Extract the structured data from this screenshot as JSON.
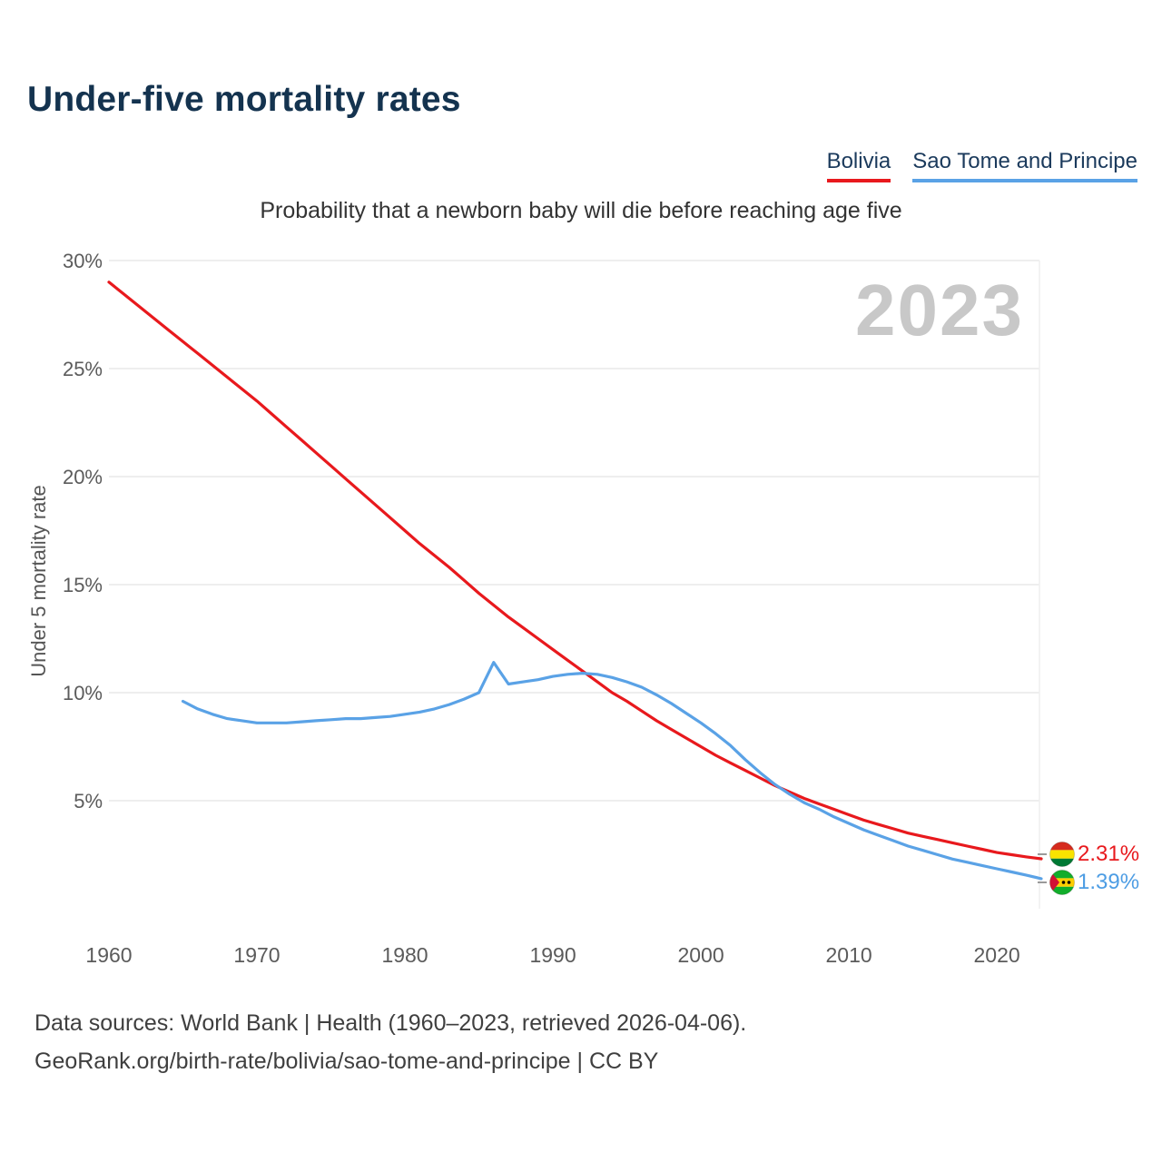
{
  "page": {
    "title": "Under-five mortality rates",
    "subtitle": "Probability that a newborn baby will die before reaching age five",
    "watermark": "2023",
    "footer_line1": "Data sources: World Bank | Health (1960–2023, retrieved 2026-04-06).",
    "footer_line2": "GeoRank.org/birth-rate/bolivia/sao-tome-and-principe | CC BY"
  },
  "legend": [
    {
      "label": "Bolivia",
      "color": "#e8191d"
    },
    {
      "label": "Sao Tome and Principe",
      "color": "#5aa2e6"
    }
  ],
  "chart_data": {
    "type": "line",
    "title": "Under-five mortality rates",
    "subtitle": "Probability that a newborn baby will die before reaching age five",
    "xlabel": "",
    "ylabel": "Under 5 mortality rate",
    "xlim": [
      1958,
      2026
    ],
    "ylim": [
      0,
      30
    ],
    "yticks": [
      5,
      10,
      15,
      20,
      25,
      30
    ],
    "ytick_suffix": "%",
    "xticks": [
      1960,
      1970,
      1980,
      1990,
      2000,
      2010,
      2020
    ],
    "grid": "horizontal",
    "legend_position": "top-right",
    "series": [
      {
        "name": "Bolivia",
        "color": "#e8191d",
        "end_label": "2.31%",
        "x": [
          1960,
          1961,
          1962,
          1963,
          1964,
          1965,
          1966,
          1967,
          1968,
          1969,
          1970,
          1971,
          1972,
          1973,
          1974,
          1975,
          1976,
          1977,
          1978,
          1979,
          1980,
          1981,
          1982,
          1983,
          1984,
          1985,
          1986,
          1987,
          1988,
          1989,
          1990,
          1991,
          1992,
          1993,
          1994,
          1995,
          1996,
          1997,
          1998,
          1999,
          2000,
          2001,
          2002,
          2003,
          2004,
          2005,
          2006,
          2007,
          2008,
          2009,
          2010,
          2011,
          2012,
          2013,
          2014,
          2015,
          2016,
          2017,
          2018,
          2019,
          2020,
          2021,
          2022,
          2023
        ],
        "values": [
          29.0,
          28.45,
          27.9,
          27.35,
          26.8,
          26.25,
          25.7,
          25.15,
          24.6,
          24.05,
          23.5,
          22.9,
          22.3,
          21.7,
          21.1,
          20.5,
          19.9,
          19.3,
          18.7,
          18.1,
          17.5,
          16.9,
          16.35,
          15.8,
          15.2,
          14.6,
          14.05,
          13.5,
          13.0,
          12.5,
          12.0,
          11.5,
          11.0,
          10.5,
          10.0,
          9.6,
          9.15,
          8.7,
          8.3,
          7.9,
          7.5,
          7.1,
          6.75,
          6.4,
          6.05,
          5.7,
          5.4,
          5.1,
          4.85,
          4.6,
          4.35,
          4.1,
          3.9,
          3.7,
          3.5,
          3.35,
          3.2,
          3.05,
          2.9,
          2.75,
          2.6,
          2.5,
          2.4,
          2.31
        ]
      },
      {
        "name": "Sao Tome and Principe",
        "color": "#5aa2e6",
        "end_label": "1.39%",
        "x": [
          1965,
          1966,
          1967,
          1968,
          1969,
          1970,
          1971,
          1972,
          1973,
          1974,
          1975,
          1976,
          1977,
          1978,
          1979,
          1980,
          1981,
          1982,
          1983,
          1984,
          1985,
          1986,
          1987,
          1988,
          1989,
          1990,
          1991,
          1992,
          1993,
          1994,
          1995,
          1996,
          1997,
          1998,
          1999,
          2000,
          2001,
          2002,
          2003,
          2004,
          2005,
          2006,
          2007,
          2008,
          2009,
          2010,
          2011,
          2012,
          2013,
          2014,
          2015,
          2016,
          2017,
          2018,
          2019,
          2020,
          2021,
          2022,
          2023
        ],
        "values": [
          9.6,
          9.25,
          9.0,
          8.8,
          8.7,
          8.6,
          8.6,
          8.6,
          8.65,
          8.7,
          8.75,
          8.8,
          8.8,
          8.85,
          8.9,
          9.0,
          9.1,
          9.25,
          9.45,
          9.7,
          10.0,
          11.4,
          10.4,
          10.5,
          10.6,
          10.75,
          10.85,
          10.9,
          10.85,
          10.7,
          10.5,
          10.25,
          9.9,
          9.5,
          9.05,
          8.6,
          8.1,
          7.55,
          6.9,
          6.3,
          5.75,
          5.3,
          4.9,
          4.6,
          4.25,
          3.95,
          3.65,
          3.4,
          3.15,
          2.9,
          2.7,
          2.5,
          2.3,
          2.15,
          2.0,
          1.85,
          1.7,
          1.55,
          1.39
        ]
      }
    ]
  }
}
